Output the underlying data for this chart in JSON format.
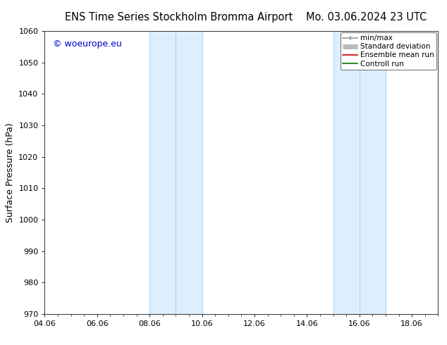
{
  "title_left": "ENS Time Series Stockholm Bromma Airport",
  "title_right": "Mo. 03.06.2024 23 UTC",
  "ylabel": "Surface Pressure (hPa)",
  "ylim": [
    970,
    1060
  ],
  "yticks": [
    970,
    980,
    990,
    1000,
    1010,
    1020,
    1030,
    1040,
    1050,
    1060
  ],
  "xlim_start": 4.06,
  "xlim_end": 19.06,
  "xtick_labels": [
    "04.06",
    "06.06",
    "08.06",
    "10.06",
    "12.06",
    "14.06",
    "16.06",
    "18.06"
  ],
  "xtick_values": [
    4.06,
    6.06,
    8.06,
    10.06,
    12.06,
    14.06,
    16.06,
    18.06
  ],
  "shaded_bands": [
    {
      "x_start": 8.06,
      "x_end": 9.06,
      "divider": 9.06
    },
    {
      "x_start": 9.06,
      "x_end": 10.06,
      "divider": null
    },
    {
      "x_start": 15.06,
      "x_end": 16.06,
      "divider": 16.06
    },
    {
      "x_start": 16.06,
      "x_end": 17.06,
      "divider": null
    }
  ],
  "shaded_color": "#ddeeff",
  "shaded_edge_color": "#b8d4ea",
  "watermark_text": "© woeurope.eu",
  "watermark_color": "#0000cc",
  "legend_entries": [
    {
      "label": "min/max",
      "color": "#999999",
      "lw": 1.2
    },
    {
      "label": "Standard deviation",
      "color": "#bbbbbb",
      "lw": 5
    },
    {
      "label": "Ensemble mean run",
      "color": "#cc0000",
      "lw": 1.2
    },
    {
      "label": "Controll run",
      "color": "#007700",
      "lw": 1.2
    }
  ],
  "bg_color": "#ffffff",
  "title_fontsize": 10.5,
  "label_fontsize": 9,
  "tick_fontsize": 8,
  "legend_fontsize": 7.5,
  "watermark_fontsize": 9
}
